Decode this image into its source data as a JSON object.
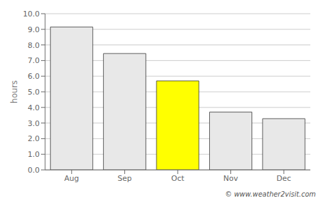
{
  "chart_data": {
    "type": "bar",
    "categories": [
      "Aug",
      "Sep",
      "Oct",
      "Nov",
      "Dec"
    ],
    "values": [
      9.15,
      7.45,
      5.7,
      3.7,
      3.28
    ],
    "colors": [
      "#e8e8e8",
      "#e8e8e8",
      "#ffff00",
      "#e8e8e8",
      "#e8e8e8"
    ],
    "ylabel": "hours",
    "ylim": [
      0,
      10.0
    ],
    "yticks": [
      {
        "value": 0.0,
        "label": "0.0"
      },
      {
        "value": 1.0,
        "label": "1.0"
      },
      {
        "value": 2.0,
        "label": "2.0"
      },
      {
        "value": 3.0,
        "label": "3.0"
      },
      {
        "value": 4.0,
        "label": "4.0"
      },
      {
        "value": 5.0,
        "label": "5.0"
      },
      {
        "value": 6.0,
        "label": "6.0"
      },
      {
        "value": 7.0,
        "label": "7.0"
      },
      {
        "value": 8.0,
        "label": "8.0"
      },
      {
        "value": 9.0,
        "label": "9.0"
      },
      {
        "value": 10.0,
        "label": "10.0"
      }
    ],
    "grid": true,
    "annotations": [
      "© www.weather2visit.com"
    ]
  }
}
